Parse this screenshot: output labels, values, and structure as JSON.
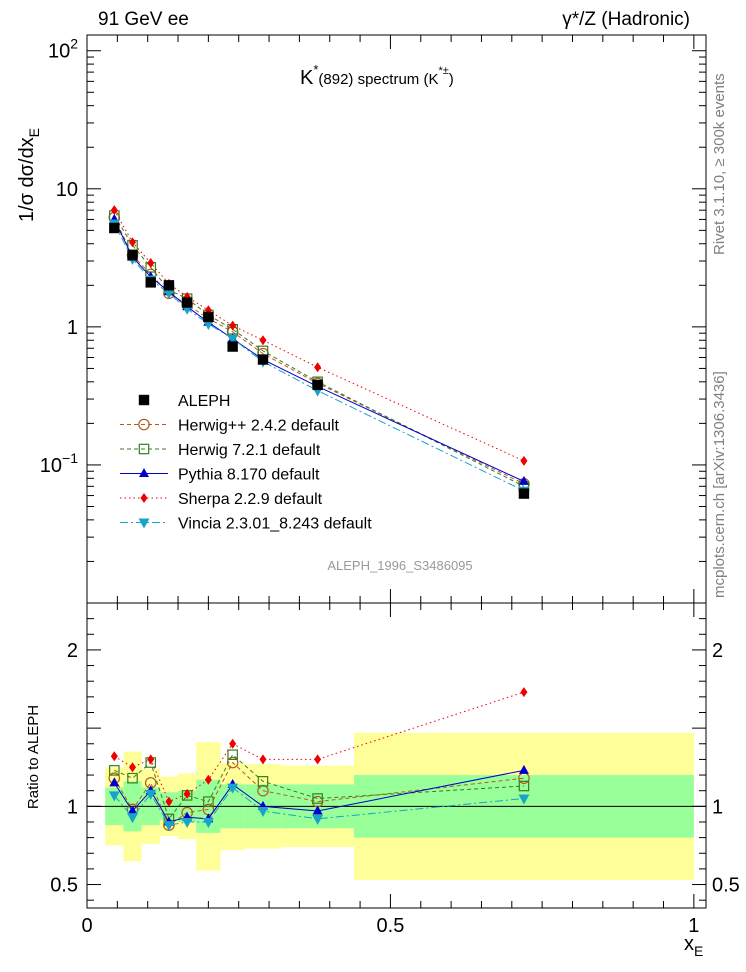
{
  "header": {
    "left": "91 GeV ee",
    "right": "γ*/Z (Hadronic)",
    "side_top": "Rivet 3.1.10, ≥ 300k events",
    "side_bottom": "mcplots.cern.ch [arXiv:1306.3436]"
  },
  "colors": {
    "data": "#000000",
    "herwigpp": "#b35a1f",
    "herwig7": "#3a7d1e",
    "pythia": "#0000cc",
    "sherpa": "#ee0000",
    "vincia": "#1aa3c8",
    "band_inner": "#99ff99",
    "band_outer": "#ffff99"
  },
  "chart_data": [
    {
      "type": "line",
      "title_main": "K",
      "title_sup": "*",
      "title_rest": "(892) spectrum (K",
      "title_sup2": "*±",
      "title_close": ")",
      "ylabel": "1/σ dσ/dx",
      "ylabel_sub": "E",
      "yscale": "log",
      "xlim": [
        0,
        1.02
      ],
      "ylim": [
        0.01,
        130
      ],
      "yticks": [
        {
          "value": 100,
          "label": "10",
          "sup": "2"
        },
        {
          "value": 10,
          "label": "10",
          "sup": ""
        },
        {
          "value": 1,
          "label": "1",
          "sup": ""
        },
        {
          "value": 0.1,
          "label": "10",
          "sup": "−1"
        }
      ],
      "watermark": "ALEPH_1996_S3486095",
      "x": [
        0.045,
        0.075,
        0.105,
        0.135,
        0.165,
        0.2,
        0.24,
        0.29,
        0.38,
        0.72
      ],
      "series": [
        {
          "name": "ALEPH",
          "key": "data",
          "marker": "square",
          "style": "none",
          "values": [
            5.2,
            3.3,
            2.1,
            2.0,
            1.5,
            1.18,
            0.72,
            0.58,
            0.38,
            0.062
          ]
        },
        {
          "name": "Herwig++ 2.4.2 default",
          "key": "herwigpp",
          "marker": "open-circle",
          "style": "dash",
          "values": [
            6.2,
            3.3,
            2.4,
            1.75,
            1.45,
            1.15,
            0.92,
            0.64,
            0.39,
            0.073
          ]
        },
        {
          "name": "Herwig 7.2.1 default",
          "key": "herwig7",
          "marker": "open-square",
          "style": "dash",
          "values": [
            6.4,
            3.9,
            2.7,
            1.85,
            1.6,
            1.22,
            0.96,
            0.67,
            0.4,
            0.07
          ]
        },
        {
          "name": "Pythia 8.170 default",
          "key": "pythia",
          "marker": "triangle",
          "style": "solid",
          "values": [
            6.0,
            3.2,
            2.3,
            1.8,
            1.4,
            1.08,
            0.82,
            0.58,
            0.37,
            0.076
          ]
        },
        {
          "name": "Sherpa 2.2.9 default",
          "key": "sherpa",
          "marker": "diamond",
          "style": "dot",
          "values": [
            7.0,
            4.1,
            2.9,
            2.05,
            1.65,
            1.32,
            1.02,
            0.8,
            0.51,
            0.107
          ]
        },
        {
          "name": "Vincia 2.3.01_8.243 default",
          "key": "vincia",
          "marker": "tri-down",
          "style": "dashdot",
          "values": [
            5.6,
            3.1,
            2.2,
            1.75,
            1.35,
            1.05,
            0.82,
            0.56,
            0.345,
            0.065
          ]
        }
      ]
    },
    {
      "type": "line",
      "ylabel": "Ratio to ALEPH",
      "xlabel": "x",
      "xlabel_sub": "E",
      "xlim": [
        0,
        1.02
      ],
      "ylim": [
        0.35,
        2.3
      ],
      "yticks": [
        {
          "value": 0.5,
          "label": "0.5"
        },
        {
          "value": 1,
          "label": "1"
        },
        {
          "value": 2,
          "label": "2"
        }
      ],
      "xticks": [
        {
          "value": 0,
          "label": "0"
        },
        {
          "value": 0.5,
          "label": "0.5"
        },
        {
          "value": 1,
          "label": "1"
        }
      ],
      "bands": [
        {
          "x0": 0.03,
          "x1": 0.06,
          "inner": [
            0.88,
            1.12
          ],
          "outer": [
            0.75,
            1.25
          ]
        },
        {
          "x0": 0.06,
          "x1": 0.09,
          "inner": [
            0.84,
            1.16
          ],
          "outer": [
            0.65,
            1.35
          ]
        },
        {
          "x0": 0.09,
          "x1": 0.12,
          "inner": [
            0.88,
            1.12
          ],
          "outer": [
            0.76,
            1.24
          ]
        },
        {
          "x0": 0.12,
          "x1": 0.15,
          "inner": [
            0.91,
            1.09
          ],
          "outer": [
            0.81,
            1.19
          ]
        },
        {
          "x0": 0.15,
          "x1": 0.18,
          "inner": [
            0.9,
            1.1
          ],
          "outer": [
            0.79,
            1.21
          ]
        },
        {
          "x0": 0.18,
          "x1": 0.22,
          "inner": [
            0.83,
            1.17
          ],
          "outer": [
            0.59,
            1.41
          ]
        },
        {
          "x0": 0.22,
          "x1": 0.26,
          "inner": [
            0.86,
            1.14
          ],
          "outer": [
            0.72,
            1.28
          ]
        },
        {
          "x0": 0.26,
          "x1": 0.32,
          "inner": [
            0.86,
            1.14
          ],
          "outer": [
            0.73,
            1.27
          ]
        },
        {
          "x0": 0.32,
          "x1": 0.44,
          "inner": [
            0.86,
            1.14
          ],
          "outer": [
            0.74,
            1.26
          ]
        },
        {
          "x0": 0.44,
          "x1": 1.0,
          "inner": [
            0.8,
            1.2
          ],
          "outer": [
            0.53,
            1.47
          ]
        }
      ],
      "series": [
        {
          "name": "Herwig++ 2.4.2 default",
          "key": "herwigpp",
          "marker": "open-circle",
          "style": "dash",
          "values": [
            1.18,
            0.98,
            1.15,
            0.88,
            0.96,
            0.98,
            1.28,
            1.1,
            1.03,
            1.18
          ]
        },
        {
          "name": "Herwig 7.2.1 default",
          "key": "herwig7",
          "marker": "open-square",
          "style": "dash",
          "values": [
            1.23,
            1.18,
            1.28,
            0.92,
            1.07,
            1.03,
            1.33,
            1.16,
            1.05,
            1.13
          ]
        },
        {
          "name": "Pythia 8.170 default",
          "key": "pythia",
          "marker": "triangle",
          "style": "solid",
          "values": [
            1.15,
            0.97,
            1.1,
            0.9,
            0.93,
            0.92,
            1.14,
            1.0,
            0.97,
            1.23
          ]
        },
        {
          "name": "Sherpa 2.2.9 default",
          "key": "sherpa",
          "marker": "diamond",
          "style": "dot",
          "values": [
            1.32,
            1.25,
            1.3,
            1.03,
            1.08,
            1.17,
            1.4,
            1.3,
            1.3,
            1.73
          ]
        },
        {
          "name": "Vincia 2.3.01_8.243 default",
          "key": "vincia",
          "marker": "tri-down",
          "style": "dashdot",
          "values": [
            1.07,
            0.93,
            1.08,
            0.88,
            0.9,
            0.9,
            1.12,
            0.97,
            0.92,
            1.05
          ]
        }
      ]
    }
  ]
}
